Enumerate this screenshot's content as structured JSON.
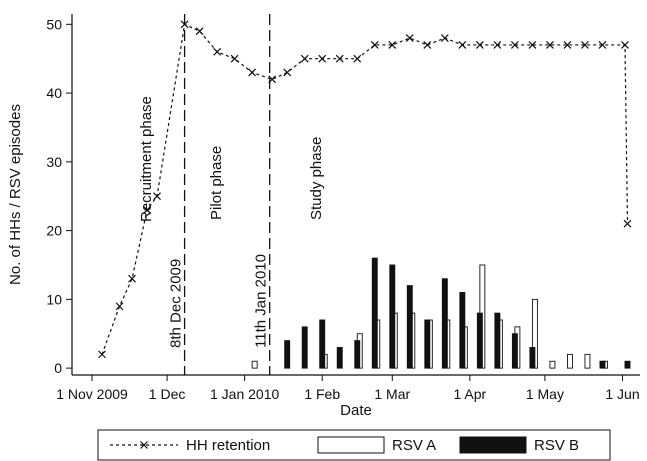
{
  "chart_data": {
    "type": "line",
    "xlabel": "Date",
    "ylabel": "No. of HHs / RSV episodes",
    "ylim": [
      -1,
      51.5
    ],
    "xlim": [
      "2009-10-24",
      "2010-06-08"
    ],
    "y_ticks": [
      0,
      10,
      20,
      30,
      40,
      50
    ],
    "x_ticks": [
      {
        "date": "2009-11-01",
        "label": "1 Nov 2009"
      },
      {
        "date": "2009-12-01",
        "label": "1 Dec"
      },
      {
        "date": "2010-01-01",
        "label": "1 Jan 2010"
      },
      {
        "date": "2010-02-01",
        "label": "1 Feb"
      },
      {
        "date": "2010-03-01",
        "label": "1 Mar"
      },
      {
        "date": "2010-04-01",
        "label": "1 Apr"
      },
      {
        "date": "2010-05-01",
        "label": "1 May"
      },
      {
        "date": "2010-06-01",
        "label": "1 Jun"
      }
    ],
    "grid": false,
    "legend_position": "bottom",
    "phase_lines": [
      {
        "date": "2009-12-08",
        "label": "8th Dec 2009"
      },
      {
        "date": "2010-01-11",
        "label": "11th Jan 2010"
      }
    ],
    "phase_annotations": [
      {
        "date": "2009-11-23",
        "label": "Recruitment phase"
      },
      {
        "date": "2009-12-21",
        "label": "Pilot phase"
      },
      {
        "date": "2010-01-30",
        "label": "Study phase"
      }
    ],
    "series": [
      {
        "name": "HH retention",
        "kind": "line",
        "style": "dashed-x",
        "points": [
          {
            "x": "2009-11-05",
            "y": 2
          },
          {
            "x": "2009-11-12",
            "y": 9
          },
          {
            "x": "2009-11-17",
            "y": 13
          },
          {
            "x": "2009-11-23",
            "y": 23
          },
          {
            "x": "2009-11-27",
            "y": 25
          },
          {
            "x": "2009-12-08",
            "y": 50
          },
          {
            "x": "2009-12-14",
            "y": 49
          },
          {
            "x": "2009-12-21",
            "y": 46
          },
          {
            "x": "2009-12-28",
            "y": 45
          },
          {
            "x": "2010-01-04",
            "y": 43
          },
          {
            "x": "2010-01-12",
            "y": 42
          },
          {
            "x": "2010-01-18",
            "y": 43
          },
          {
            "x": "2010-01-25",
            "y": 45
          },
          {
            "x": "2010-02-01",
            "y": 45
          },
          {
            "x": "2010-02-08",
            "y": 45
          },
          {
            "x": "2010-02-15",
            "y": 45
          },
          {
            "x": "2010-02-22",
            "y": 47
          },
          {
            "x": "2010-03-01",
            "y": 47
          },
          {
            "x": "2010-03-08",
            "y": 48
          },
          {
            "x": "2010-03-15",
            "y": 47
          },
          {
            "x": "2010-03-22",
            "y": 48
          },
          {
            "x": "2010-03-29",
            "y": 47
          },
          {
            "x": "2010-04-05",
            "y": 47
          },
          {
            "x": "2010-04-12",
            "y": 47
          },
          {
            "x": "2010-04-19",
            "y": 47
          },
          {
            "x": "2010-04-26",
            "y": 47
          },
          {
            "x": "2010-05-03",
            "y": 47
          },
          {
            "x": "2010-05-10",
            "y": 47
          },
          {
            "x": "2010-05-17",
            "y": 47
          },
          {
            "x": "2010-05-24",
            "y": 47
          },
          {
            "x": "2010-06-02",
            "y": 47
          },
          {
            "x": "2010-06-03",
            "y": 21
          }
        ]
      },
      {
        "name": "RSV A",
        "kind": "bar",
        "fill": "#ffffff",
        "points": [
          {
            "x": "2010-01-05",
            "y": 1
          },
          {
            "x": "2010-02-02",
            "y": 2
          },
          {
            "x": "2010-02-16",
            "y": 5
          },
          {
            "x": "2010-02-23",
            "y": 7
          },
          {
            "x": "2010-03-02",
            "y": 8
          },
          {
            "x": "2010-03-09",
            "y": 8
          },
          {
            "x": "2010-03-16",
            "y": 7
          },
          {
            "x": "2010-03-23",
            "y": 7
          },
          {
            "x": "2010-03-30",
            "y": 6
          },
          {
            "x": "2010-04-06",
            "y": 15
          },
          {
            "x": "2010-04-13",
            "y": 7
          },
          {
            "x": "2010-04-20",
            "y": 6
          },
          {
            "x": "2010-04-27",
            "y": 10
          },
          {
            "x": "2010-05-04",
            "y": 1
          },
          {
            "x": "2010-05-11",
            "y": 2
          },
          {
            "x": "2010-05-18",
            "y": 2
          },
          {
            "x": "2010-05-25",
            "y": 1
          }
        ]
      },
      {
        "name": "RSV B",
        "kind": "bar",
        "fill": "#111111",
        "points": [
          {
            "x": "2010-01-18",
            "y": 4
          },
          {
            "x": "2010-01-25",
            "y": 6
          },
          {
            "x": "2010-02-01",
            "y": 7
          },
          {
            "x": "2010-02-08",
            "y": 3
          },
          {
            "x": "2010-02-15",
            "y": 4
          },
          {
            "x": "2010-02-22",
            "y": 16
          },
          {
            "x": "2010-03-01",
            "y": 15
          },
          {
            "x": "2010-03-08",
            "y": 12
          },
          {
            "x": "2010-03-15",
            "y": 7
          },
          {
            "x": "2010-03-22",
            "y": 13
          },
          {
            "x": "2010-03-29",
            "y": 11
          },
          {
            "x": "2010-04-05",
            "y": 8
          },
          {
            "x": "2010-04-12",
            "y": 8
          },
          {
            "x": "2010-04-19",
            "y": 5
          },
          {
            "x": "2010-04-26",
            "y": 3
          },
          {
            "x": "2010-05-24",
            "y": 1
          },
          {
            "x": "2010-06-03",
            "y": 1
          }
        ]
      }
    ]
  }
}
